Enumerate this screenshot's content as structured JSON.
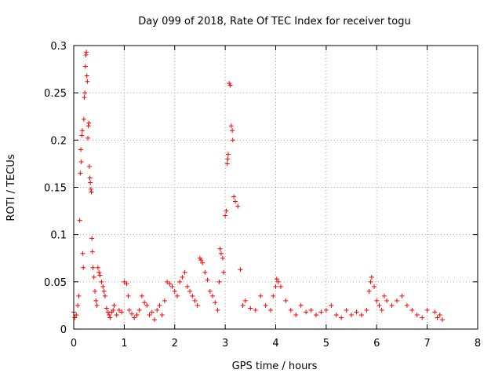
{
  "chart_data": {
    "type": "scatter",
    "title": "Day 099 of 2018, Rate Of TEC Index for receiver togu",
    "xlabel": "GPS time / hours",
    "ylabel": "ROTI / TECUs",
    "xlim": [
      0,
      8
    ],
    "ylim": [
      0,
      0.3
    ],
    "xticks": [
      0,
      1,
      2,
      3,
      4,
      5,
      6,
      7,
      8
    ],
    "yticks": [
      0,
      0.05,
      0.1,
      0.15,
      0.2,
      0.25,
      0.3
    ],
    "xtick_labels": [
      "0",
      "1",
      "2",
      "3",
      "4",
      "5",
      "6",
      "7",
      "8"
    ],
    "ytick_labels": [
      "0",
      "0.05",
      "0.1",
      "0.15",
      "0.2",
      "0.25",
      "0.3"
    ],
    "grid": true,
    "marker": "+",
    "color": "#ff0000",
    "series": [
      {
        "name": "ROTI",
        "x": [
          0.0,
          0.02,
          0.05,
          0.08,
          0.1,
          0.12,
          0.13,
          0.14,
          0.15,
          0.16,
          0.17,
          0.18,
          0.19,
          0.2,
          0.21,
          0.22,
          0.23,
          0.24,
          0.25,
          0.26,
          0.27,
          0.28,
          0.29,
          0.3,
          0.31,
          0.32,
          0.33,
          0.34,
          0.35,
          0.36,
          0.37,
          0.38,
          0.4,
          0.42,
          0.44,
          0.46,
          0.48,
          0.5,
          0.52,
          0.55,
          0.58,
          0.6,
          0.62,
          0.65,
          0.68,
          0.7,
          0.72,
          0.75,
          0.78,
          0.8,
          0.85,
          0.9,
          0.95,
          1.0,
          1.05,
          1.08,
          1.1,
          1.15,
          1.2,
          1.25,
          1.3,
          1.35,
          1.4,
          1.45,
          1.5,
          1.55,
          1.6,
          1.65,
          1.7,
          1.75,
          1.8,
          1.85,
          1.9,
          1.95,
          2.0,
          2.05,
          2.1,
          2.15,
          2.2,
          2.25,
          2.3,
          2.35,
          2.4,
          2.45,
          2.5,
          2.52,
          2.55,
          2.6,
          2.65,
          2.7,
          2.75,
          2.8,
          2.85,
          2.88,
          2.9,
          2.92,
          2.95,
          2.97,
          3.0,
          3.02,
          3.04,
          3.05,
          3.06,
          3.08,
          3.1,
          3.12,
          3.14,
          3.15,
          3.17,
          3.2,
          3.25,
          3.3,
          3.35,
          3.4,
          3.5,
          3.6,
          3.7,
          3.8,
          3.9,
          3.95,
          4.0,
          4.02,
          4.05,
          4.1,
          4.2,
          4.3,
          4.4,
          4.5,
          4.6,
          4.7,
          4.8,
          4.9,
          5.0,
          5.1,
          5.2,
          5.3,
          5.4,
          5.5,
          5.6,
          5.7,
          5.8,
          5.85,
          5.88,
          5.9,
          5.95,
          6.0,
          6.05,
          6.1,
          6.15,
          6.2,
          6.3,
          6.4,
          6.5,
          6.6,
          6.7,
          6.8,
          6.9,
          7.0,
          7.15,
          7.2,
          7.25,
          7.3
        ],
        "y": [
          0.018,
          0.012,
          0.015,
          0.025,
          0.035,
          0.115,
          0.165,
          0.19,
          0.177,
          0.205,
          0.21,
          0.08,
          0.065,
          0.222,
          0.245,
          0.25,
          0.278,
          0.29,
          0.293,
          0.268,
          0.262,
          0.202,
          0.215,
          0.218,
          0.172,
          0.16,
          0.155,
          0.148,
          0.145,
          0.096,
          0.082,
          0.065,
          0.055,
          0.04,
          0.03,
          0.025,
          0.065,
          0.06,
          0.057,
          0.05,
          0.045,
          0.04,
          0.035,
          0.022,
          0.018,
          0.015,
          0.012,
          0.018,
          0.02,
          0.025,
          0.015,
          0.02,
          0.018,
          0.05,
          0.048,
          0.035,
          0.02,
          0.016,
          0.012,
          0.015,
          0.02,
          0.035,
          0.028,
          0.025,
          0.015,
          0.018,
          0.01,
          0.02,
          0.025,
          0.015,
          0.03,
          0.05,
          0.048,
          0.045,
          0.04,
          0.035,
          0.05,
          0.055,
          0.06,
          0.045,
          0.04,
          0.035,
          0.03,
          0.025,
          0.075,
          0.073,
          0.07,
          0.06,
          0.052,
          0.04,
          0.035,
          0.028,
          0.02,
          0.05,
          0.085,
          0.08,
          0.075,
          0.06,
          0.12,
          0.125,
          0.175,
          0.18,
          0.185,
          0.26,
          0.258,
          0.215,
          0.21,
          0.2,
          0.14,
          0.135,
          0.13,
          0.063,
          0.025,
          0.03,
          0.022,
          0.02,
          0.035,
          0.025,
          0.02,
          0.035,
          0.045,
          0.053,
          0.05,
          0.045,
          0.03,
          0.02,
          0.015,
          0.025,
          0.018,
          0.02,
          0.015,
          0.018,
          0.02,
          0.025,
          0.015,
          0.012,
          0.02,
          0.015,
          0.018,
          0.015,
          0.02,
          0.04,
          0.05,
          0.055,
          0.045,
          0.03,
          0.025,
          0.02,
          0.035,
          0.03,
          0.025,
          0.03,
          0.035,
          0.025,
          0.02,
          0.015,
          0.012,
          0.02,
          0.018,
          0.012,
          0.015,
          0.01
        ]
      }
    ]
  }
}
